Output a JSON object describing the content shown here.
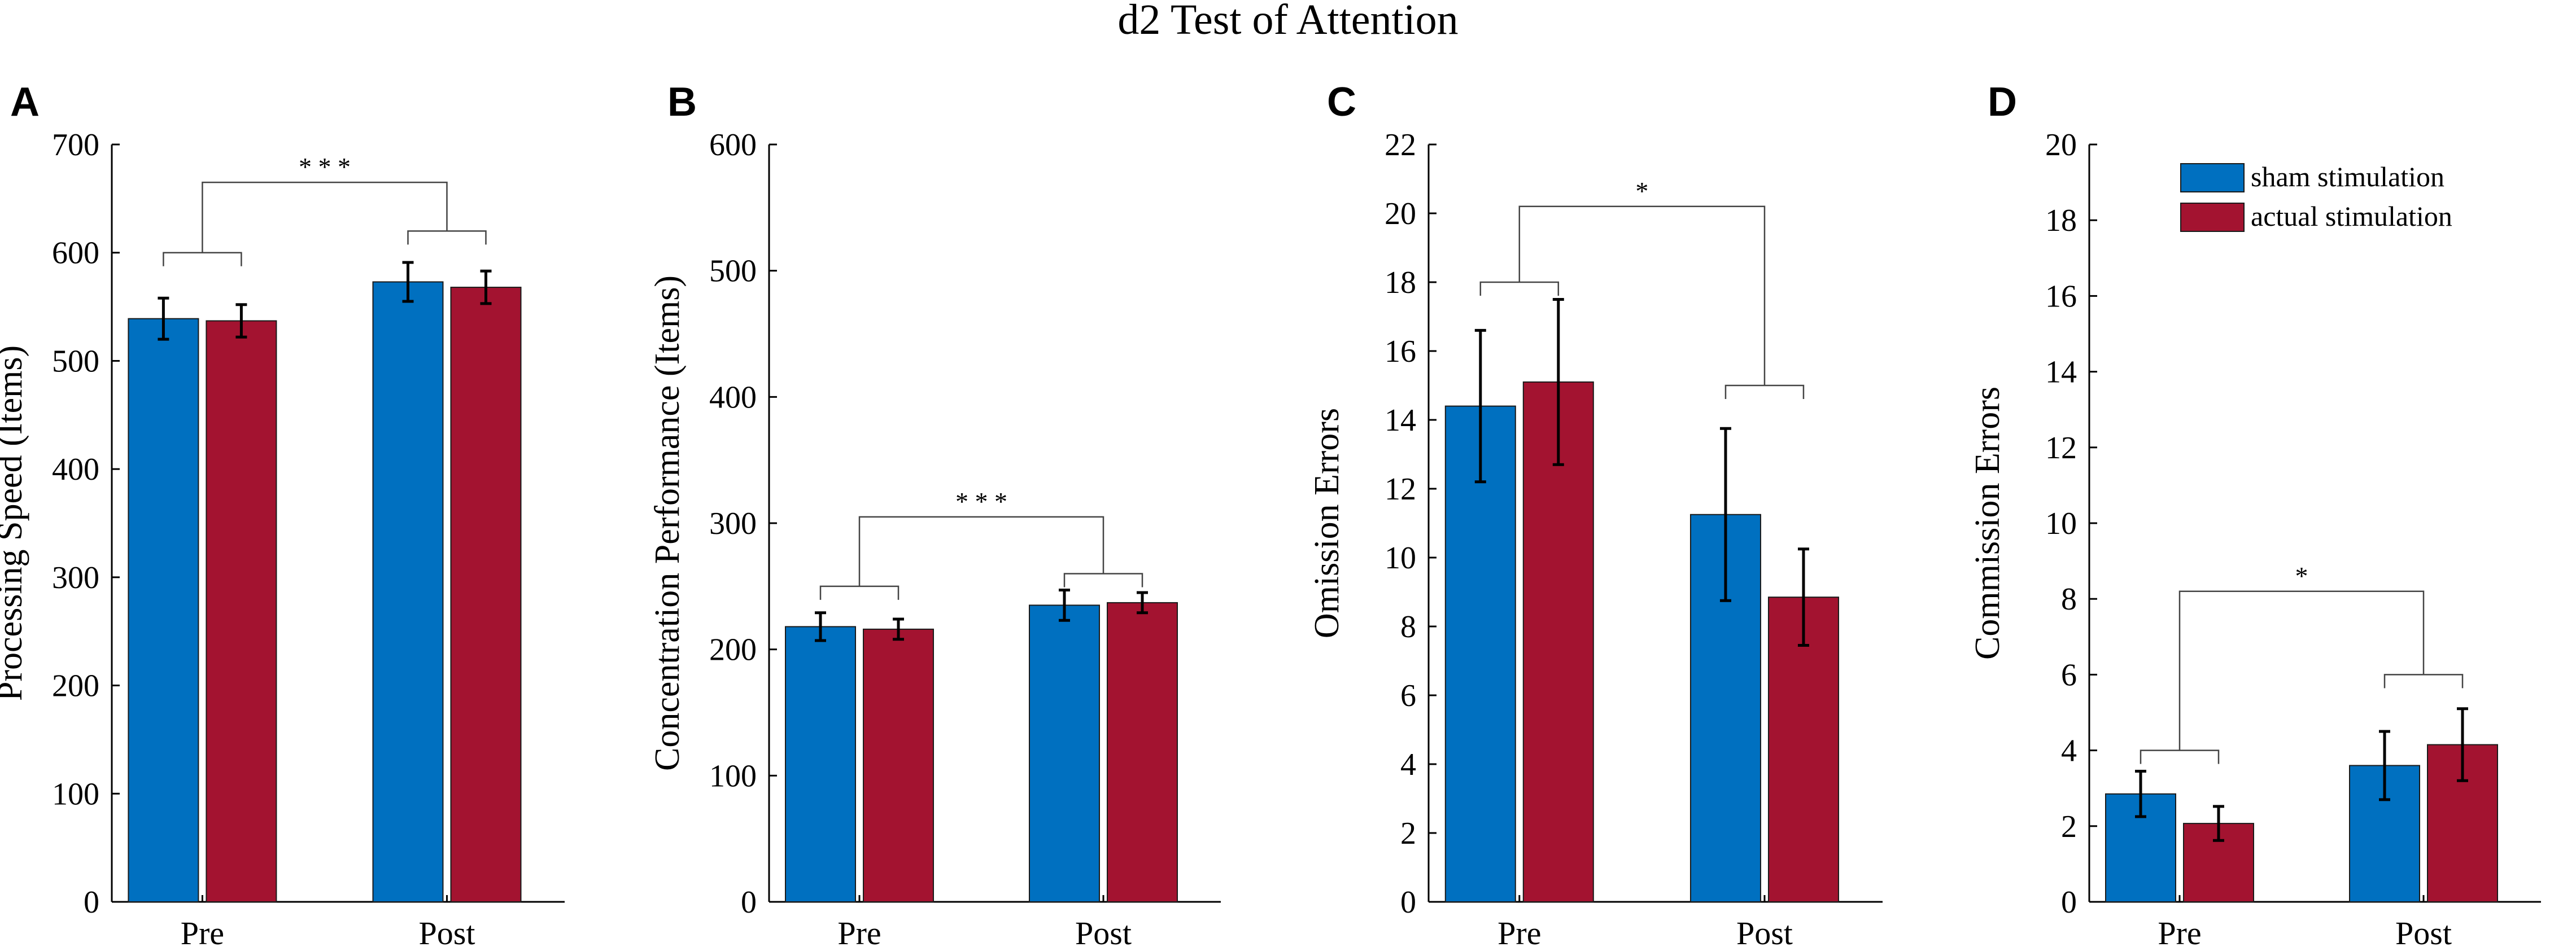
{
  "figure": {
    "title": "d2 Test of Attention"
  },
  "colors": {
    "sham": "#0070C0",
    "actual": "#A31330"
  },
  "legend": {
    "position": "top-right of panel D",
    "entries": [
      {
        "label": "sham stimulation",
        "color": "#0070C0"
      },
      {
        "label": "actual stimulation",
        "color": "#A31330"
      }
    ]
  },
  "chart_data": [
    {
      "panel": "A",
      "type": "bar",
      "ylabel": "Processing Speed (Items)",
      "ylim": [
        0,
        700
      ],
      "yticks": [
        0,
        100,
        200,
        300,
        400,
        500,
        600,
        700
      ],
      "categories": [
        "Pre",
        "Post"
      ],
      "series": [
        {
          "name": "sham stimulation",
          "values": [
            539,
            573
          ],
          "errors": [
            19,
            18
          ]
        },
        {
          "name": "actual stimulation",
          "values": [
            537,
            568
          ],
          "errors": [
            15,
            15
          ]
        }
      ],
      "significance": {
        "label": "* * *",
        "pair_levels": [
          600,
          620
        ],
        "top_level": 665
      }
    },
    {
      "panel": "B",
      "type": "bar",
      "ylabel": "Concentration Performance (Items)",
      "ylim": [
        0,
        600
      ],
      "yticks": [
        0,
        100,
        200,
        300,
        400,
        500,
        600
      ],
      "categories": [
        "Pre",
        "Post"
      ],
      "series": [
        {
          "name": "sham stimulation",
          "values": [
            218,
            235
          ],
          "errors": [
            11,
            12
          ]
        },
        {
          "name": "actual stimulation",
          "values": [
            216,
            237
          ],
          "errors": [
            8,
            8
          ]
        }
      ],
      "significance": {
        "label": "* * *",
        "pair_levels": [
          250,
          260
        ],
        "top_level": 305
      }
    },
    {
      "panel": "C",
      "type": "bar",
      "ylabel": "Omission Errors",
      "ylim": [
        0,
        22
      ],
      "yticks": [
        0,
        2,
        4,
        6,
        8,
        10,
        12,
        14,
        16,
        18,
        20,
        22
      ],
      "categories": [
        "Pre",
        "Post"
      ],
      "series": [
        {
          "name": "sham stimulation",
          "values": [
            14.4,
            11.25
          ],
          "errors": [
            2.2,
            2.5
          ]
        },
        {
          "name": "actual stimulation",
          "values": [
            15.1,
            8.85
          ],
          "errors": [
            2.4,
            1.4
          ]
        }
      ],
      "significance": {
        "label": "*",
        "pair_levels": [
          18,
          15
        ],
        "top_level": 20.2
      }
    },
    {
      "panel": "D",
      "type": "bar",
      "ylabel": "Commission Errors",
      "ylim": [
        0,
        20
      ],
      "yticks": [
        0,
        2,
        4,
        6,
        8,
        10,
        12,
        14,
        16,
        18,
        20
      ],
      "categories": [
        "Pre",
        "Post"
      ],
      "series": [
        {
          "name": "sham stimulation",
          "values": [
            2.85,
            3.6
          ],
          "errors": [
            0.6,
            0.9
          ]
        },
        {
          "name": "actual stimulation",
          "values": [
            2.07,
            4.15
          ],
          "errors": [
            0.45,
            0.95
          ]
        }
      ],
      "significance": {
        "label": "*",
        "pair_levels": [
          4,
          6
        ],
        "top_level": 8.2
      }
    }
  ]
}
